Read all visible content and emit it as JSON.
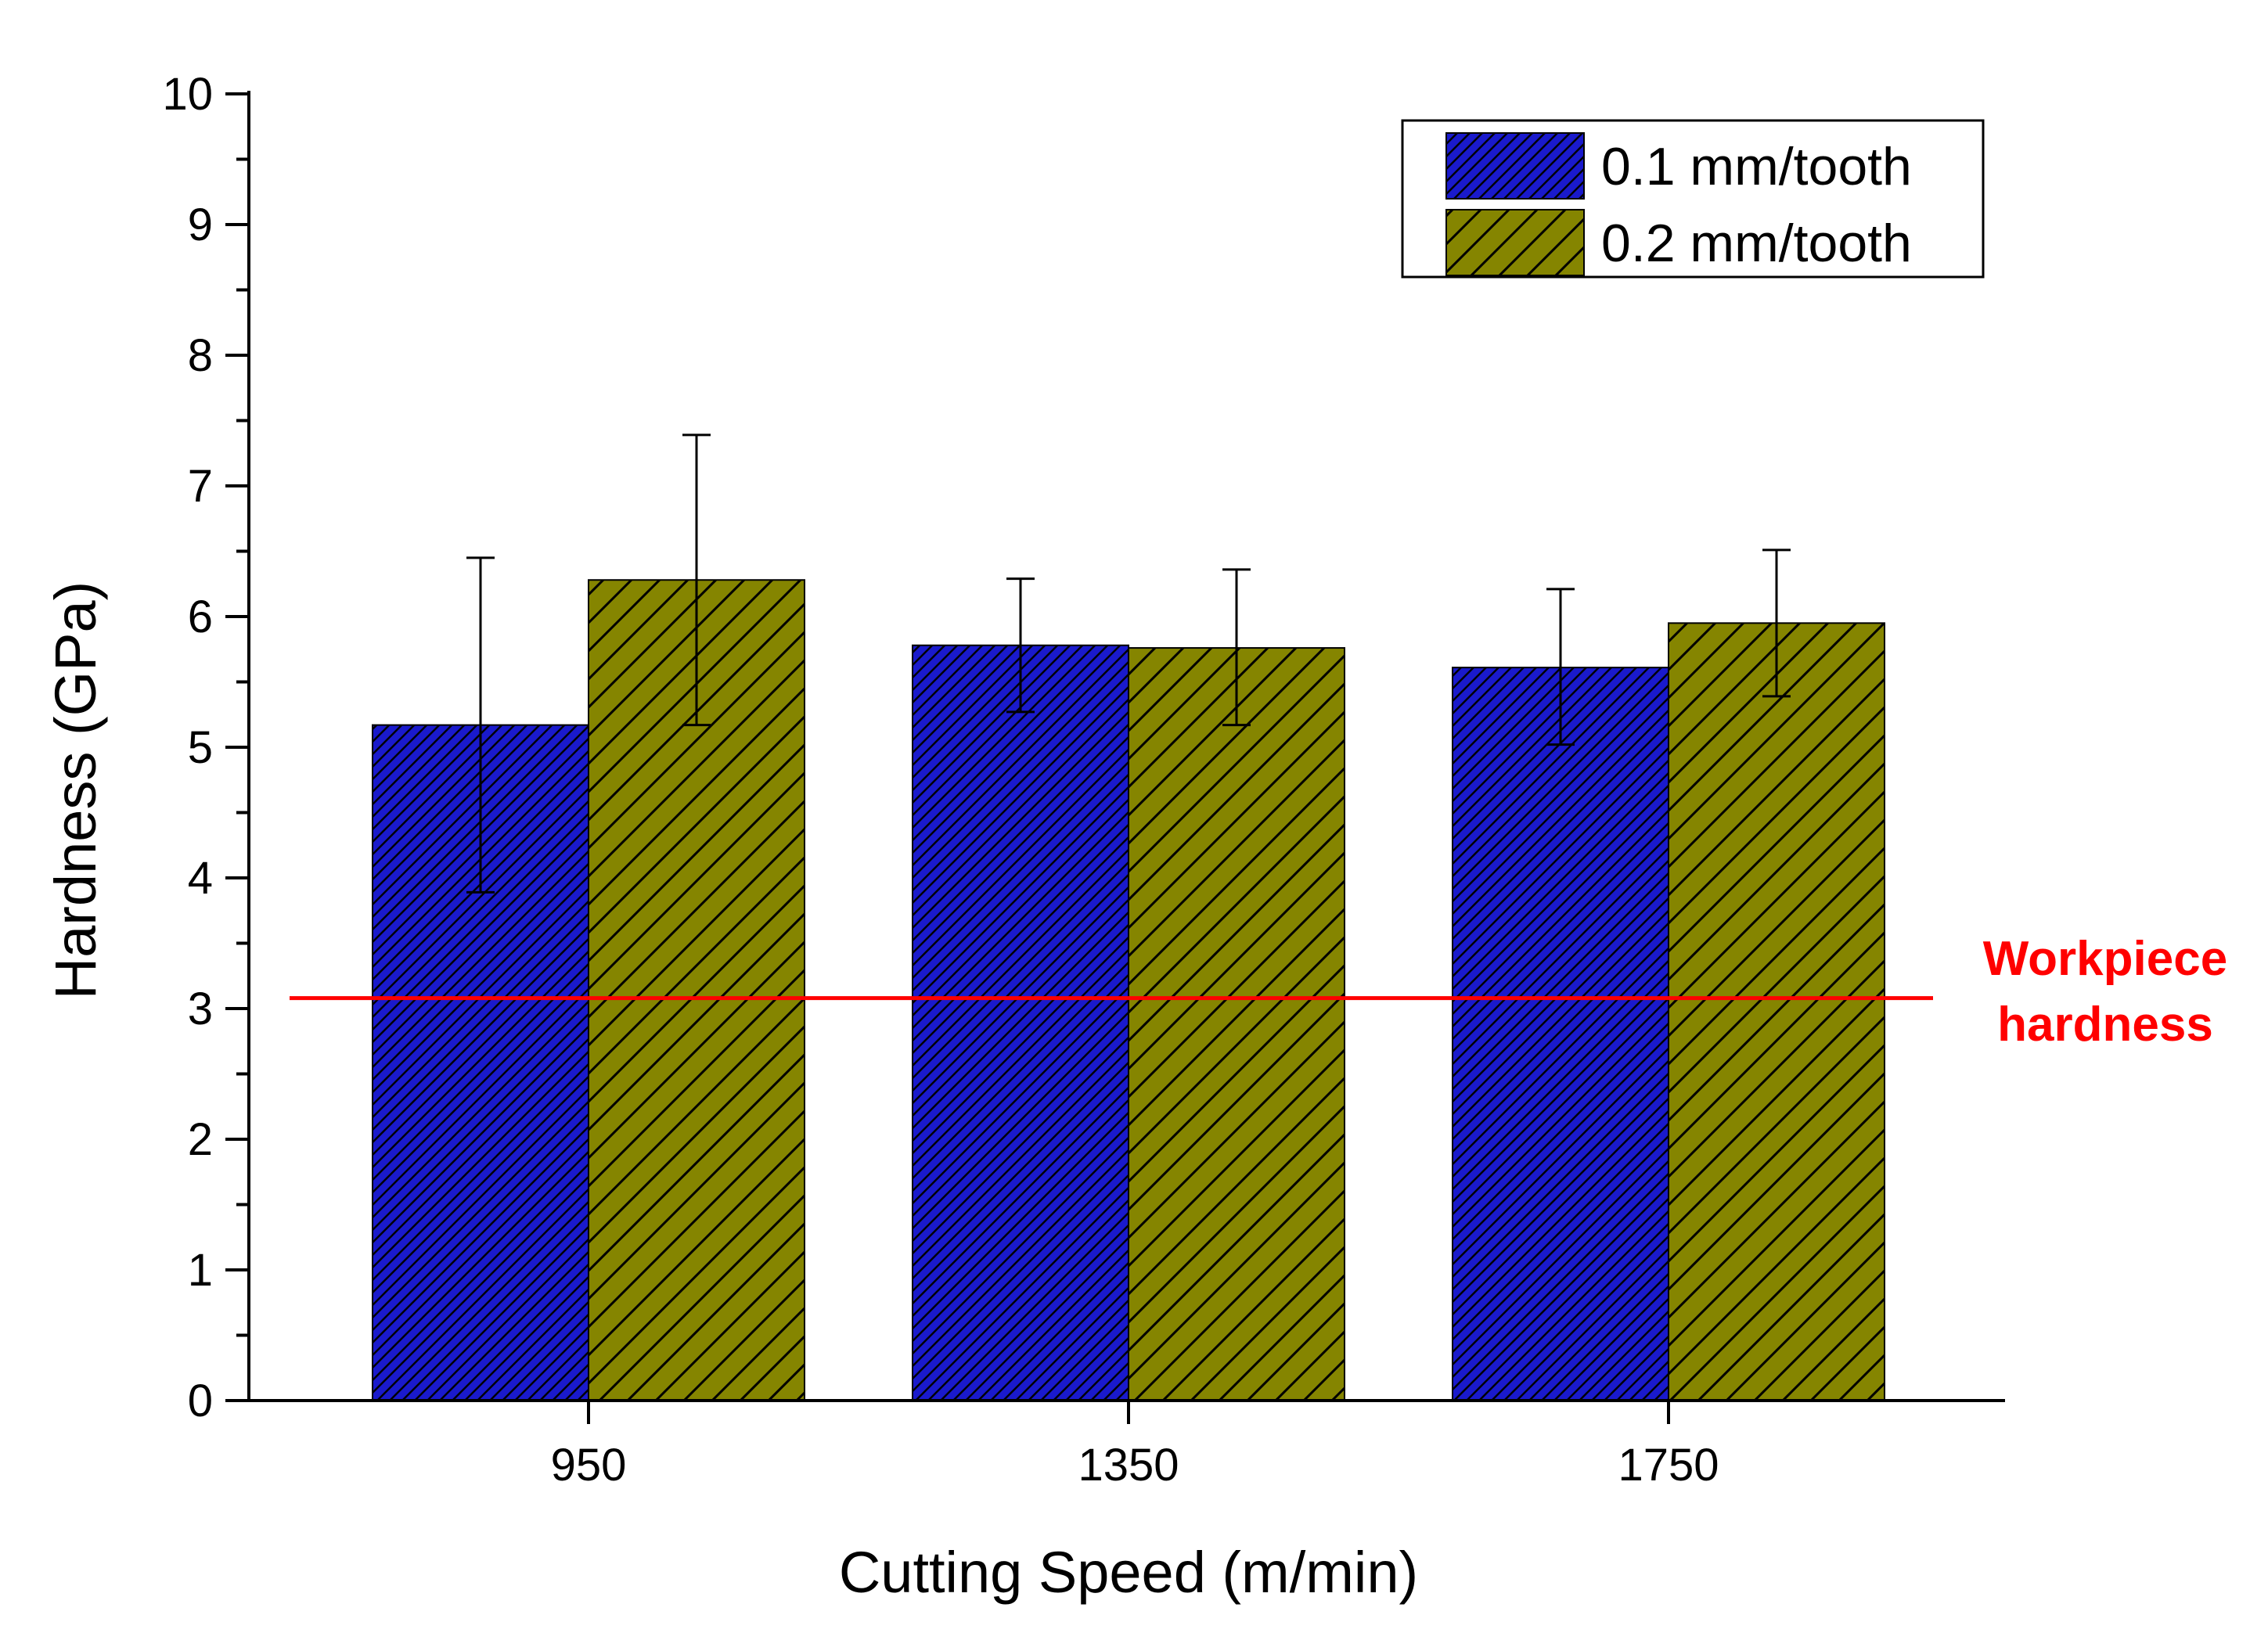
{
  "chart_data": {
    "type": "bar",
    "xlabel": "Cutting Speed (m/min)",
    "ylabel": "Hardness (GPa)",
    "ylim": [
      0,
      10
    ],
    "y_ticks": [
      "0",
      "1",
      "2",
      "3",
      "4",
      "5",
      "6",
      "7",
      "8",
      "9",
      "10"
    ],
    "categories": [
      "950",
      "1350",
      "1750"
    ],
    "series": [
      {
        "name": "0.1 mm/tooth",
        "color": "#1a1acc",
        "pattern": "dense-diagonal-hatch",
        "values": [
          5.17,
          5.78,
          5.61
        ],
        "error_low": [
          3.89,
          5.27,
          5.02
        ],
        "error_high": [
          6.45,
          6.29,
          6.21
        ]
      },
      {
        "name": "0.2 mm/tooth",
        "color": "#858500",
        "pattern": "sparse-diagonal-hatch",
        "values": [
          6.28,
          5.76,
          5.95
        ],
        "error_low": [
          5.17,
          5.17,
          5.39
        ],
        "error_high": [
          7.39,
          6.36,
          6.51
        ]
      }
    ],
    "reference_line": {
      "value": 3.08,
      "color": "#ff0000",
      "label_lines": [
        "Workpiece",
        "hardness"
      ]
    },
    "legend_position": "top-right",
    "grid": false
  }
}
